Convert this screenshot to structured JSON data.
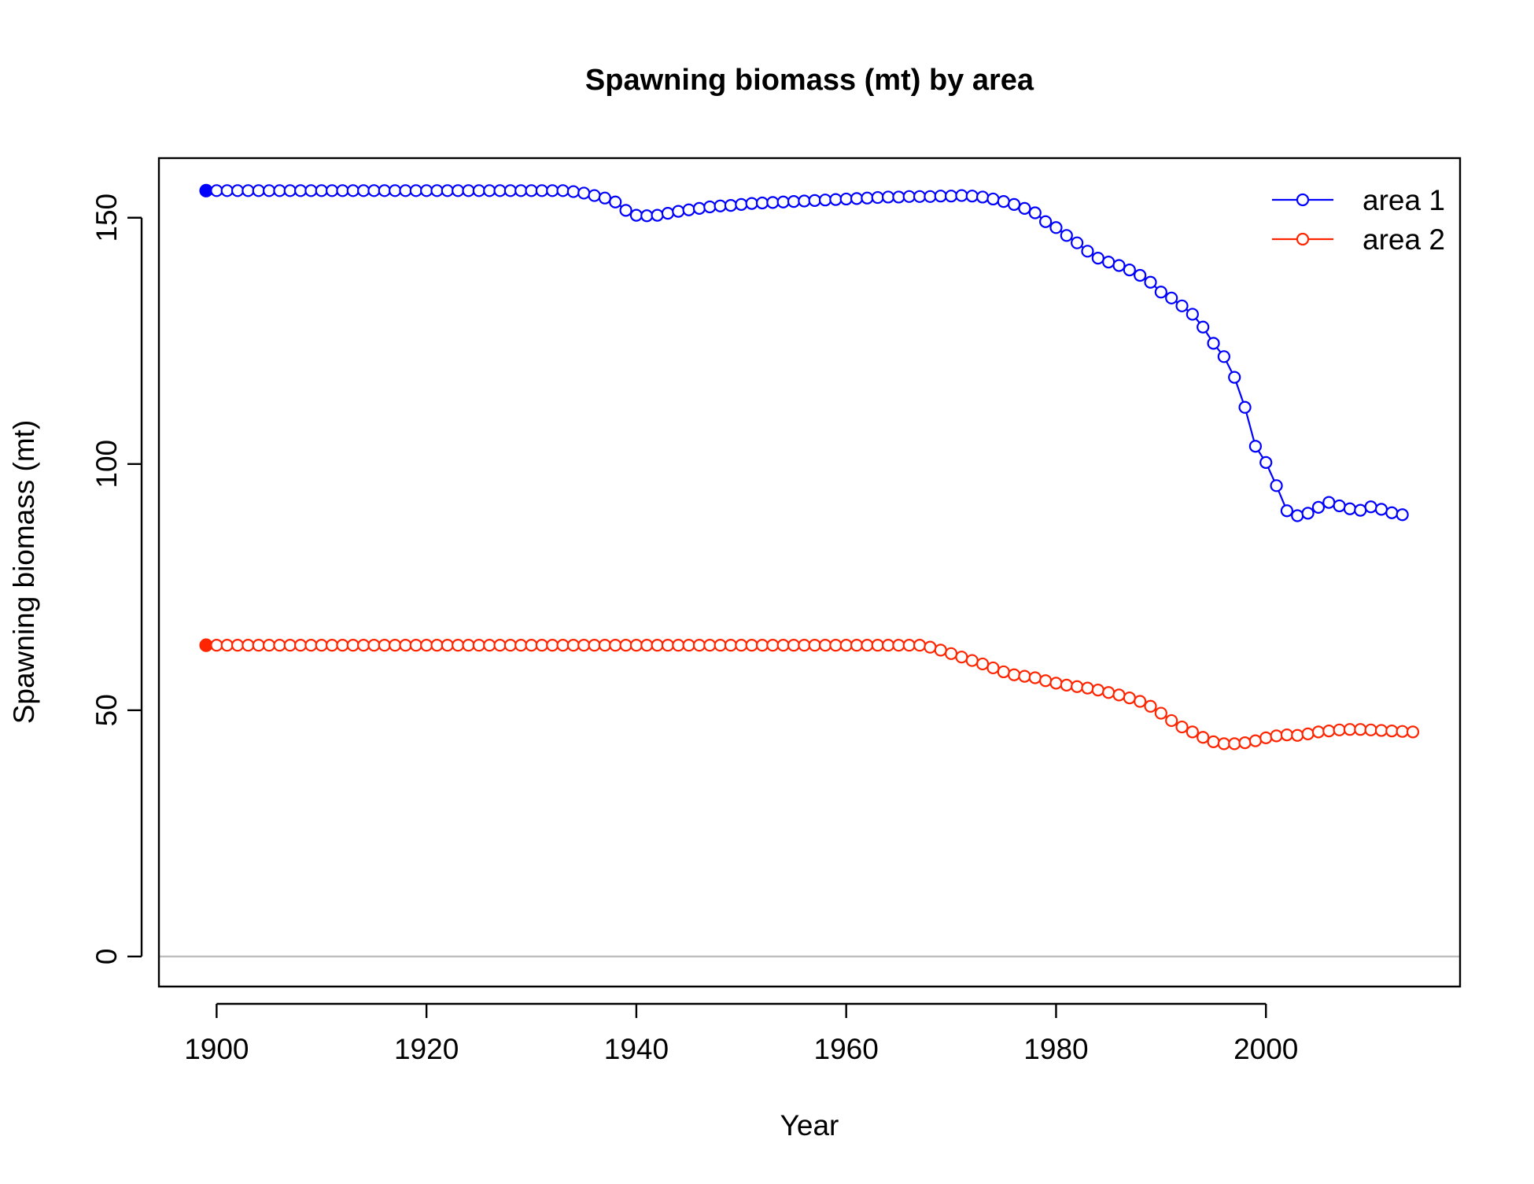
{
  "chart_data": {
    "type": "line",
    "title": "Spawning biomass (mt) by area",
    "xlabel": "Year",
    "ylabel": "Spawning biomass (mt)",
    "xlim": [
      1894.5,
      2018.5
    ],
    "ylim": [
      -6.1,
      162.1
    ],
    "x_ticks": [
      1900,
      1920,
      1940,
      1960,
      1980,
      2000
    ],
    "y_ticks": [
      0,
      50,
      100,
      150
    ],
    "reference_line": {
      "y": 0,
      "color": "#bebebe"
    },
    "legend_position": "top-right",
    "x_start": 1899,
    "series": [
      {
        "name": "area 1",
        "color": "#0000ff",
        "first_point_filled": true,
        "values": [
          155.5,
          155.5,
          155.5,
          155.5,
          155.5,
          155.5,
          155.5,
          155.5,
          155.5,
          155.5,
          155.5,
          155.5,
          155.5,
          155.5,
          155.5,
          155.5,
          155.5,
          155.5,
          155.5,
          155.5,
          155.5,
          155.5,
          155.5,
          155.5,
          155.5,
          155.5,
          155.5,
          155.5,
          155.5,
          155.5,
          155.5,
          155.5,
          155.5,
          155.5,
          155.5,
          155.3,
          155.0,
          154.5,
          154.0,
          153.2,
          151.5,
          150.5,
          150.4,
          150.5,
          150.9,
          151.3,
          151.6,
          151.9,
          152.2,
          152.4,
          152.5,
          152.7,
          152.9,
          153.0,
          153.1,
          153.2,
          153.3,
          153.4,
          153.5,
          153.6,
          153.7,
          153.8,
          153.9,
          154.0,
          154.1,
          154.2,
          154.2,
          154.3,
          154.3,
          154.3,
          154.4,
          154.4,
          154.5,
          154.4,
          154.2,
          153.8,
          153.3,
          152.7,
          151.9,
          151.0,
          149.2,
          148.0,
          146.4,
          144.9,
          143.2,
          141.8,
          141.0,
          140.3,
          139.4,
          138.3,
          136.9,
          134.9,
          133.7,
          132.1,
          130.4,
          127.8,
          124.5,
          121.8,
          117.6,
          111.5,
          103.6,
          100.3,
          95.6,
          90.5,
          89.5,
          90.0,
          91.2,
          92.2,
          91.5,
          90.9,
          90.6,
          91.3,
          90.8,
          90.1,
          89.7
        ]
      },
      {
        "name": "area 2",
        "color": "#ff2500",
        "first_point_filled": true,
        "values": [
          63.2,
          63.2,
          63.2,
          63.2,
          63.2,
          63.2,
          63.2,
          63.2,
          63.2,
          63.2,
          63.2,
          63.2,
          63.2,
          63.2,
          63.2,
          63.2,
          63.2,
          63.2,
          63.2,
          63.2,
          63.2,
          63.2,
          63.2,
          63.2,
          63.2,
          63.2,
          63.2,
          63.2,
          63.2,
          63.2,
          63.2,
          63.2,
          63.2,
          63.2,
          63.2,
          63.2,
          63.2,
          63.2,
          63.2,
          63.2,
          63.2,
          63.2,
          63.2,
          63.2,
          63.2,
          63.2,
          63.2,
          63.2,
          63.2,
          63.2,
          63.2,
          63.2,
          63.2,
          63.2,
          63.2,
          63.2,
          63.2,
          63.2,
          63.2,
          63.2,
          63.2,
          63.2,
          63.2,
          63.2,
          63.2,
          63.2,
          63.2,
          63.2,
          63.2,
          62.8,
          62.2,
          61.5,
          60.8,
          60.1,
          59.4,
          58.6,
          57.8,
          57.2,
          56.9,
          56.6,
          56.0,
          55.5,
          55.1,
          54.8,
          54.5,
          54.1,
          53.6,
          53.1,
          52.5,
          51.8,
          50.8,
          49.4,
          47.9,
          46.6,
          45.6,
          44.5,
          43.6,
          43.2,
          43.2,
          43.4,
          43.8,
          44.4,
          44.8,
          45.0,
          44.9,
          45.2,
          45.6,
          45.8,
          46.0,
          46.1,
          46.1,
          46.0,
          45.9,
          45.8,
          45.7,
          45.6
        ]
      }
    ]
  }
}
